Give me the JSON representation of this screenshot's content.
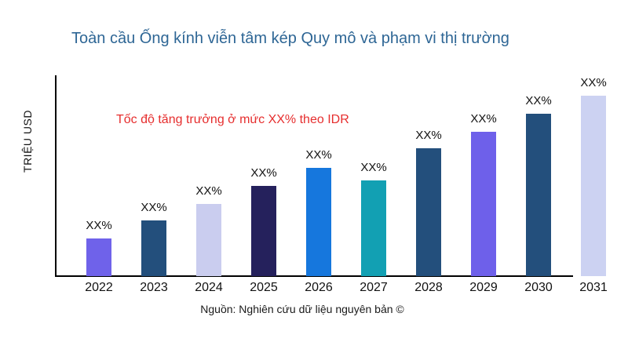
{
  "page": {
    "title": "Toàn cầu Ống kính viễn tâm kép Quy mô và phạm vi thị trường",
    "title_color": "#2e6695",
    "annotation": "Tốc độ tăng trưởng ở mức XX% theo IDR",
    "annotation_color": "#e62e2e",
    "y_axis_label": "TRIỆU USD",
    "source": "Nguồn: Nghiên cứu dữ liệu nguyên bản ©",
    "background": "#ffffff",
    "axis_color": "#000000"
  },
  "chart_data": {
    "type": "bar",
    "title": "Toàn cầu Ống kính viễn tâm kép Quy mô và phạm vi thị trường",
    "xlabel": "",
    "ylabel": "TRIỆU USD",
    "categories": [
      "2022",
      "2023",
      "2024",
      "2025",
      "2026",
      "2027",
      "2028",
      "2029",
      "2030",
      "2031"
    ],
    "values": [
      21,
      31,
      40,
      50,
      60,
      53,
      71,
      80,
      90,
      100
    ],
    "values_note": "relative bar heights estimated from pixels; numeric values masked in chart as XX%",
    "bar_labels": [
      "XX%",
      "XX%",
      "XX%",
      "XX%",
      "XX%",
      "XX%",
      "XX%",
      "XX%",
      "XX%",
      "XX%"
    ],
    "bar_colors": [
      "#6f62ea",
      "#234f7c",
      "#cacdef",
      "#25215c",
      "#1677dd",
      "#12a0b3",
      "#234f7c",
      "#6e60ea",
      "#234f7c",
      "#ccd2f2"
    ],
    "ylim": [
      0,
      108
    ],
    "grid": false,
    "legend": false,
    "annotation": "Tốc độ tăng trưởng ở mức XX% theo IDR"
  }
}
